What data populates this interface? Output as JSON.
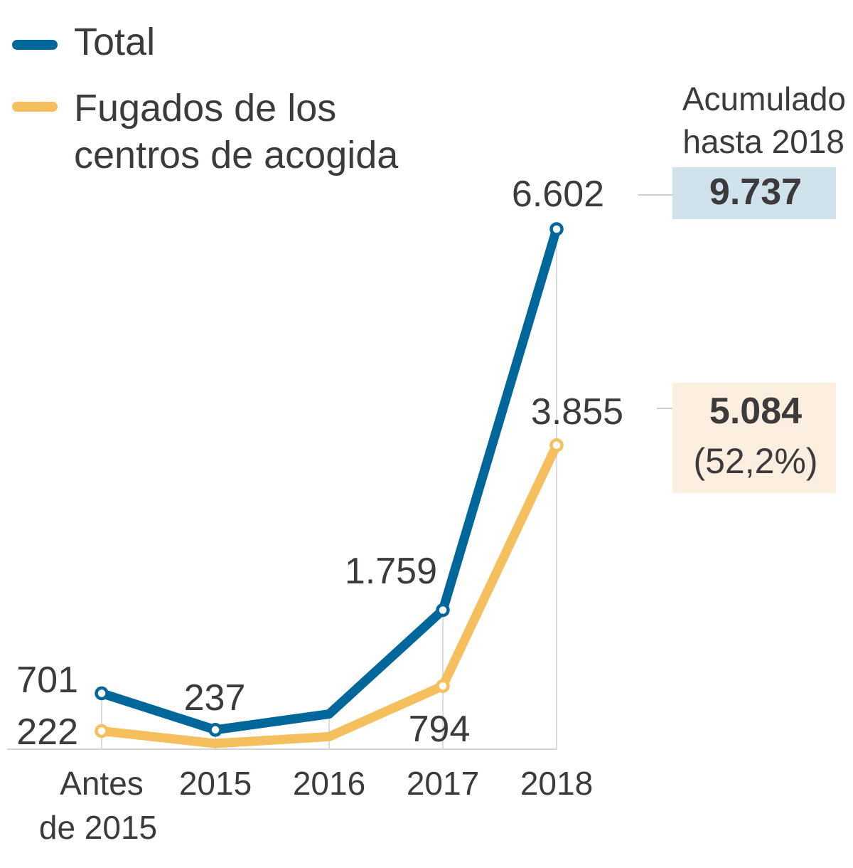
{
  "chart_data": {
    "type": "line",
    "title": "",
    "xlabel": "",
    "ylabel": "",
    "categories": [
      [
        "Antes",
        "de 2015"
      ],
      [
        "2015"
      ],
      [
        "2016"
      ],
      [
        "2017"
      ],
      [
        "2018"
      ]
    ],
    "ylim": [
      0,
      6602
    ],
    "grid": "vertical",
    "legend_position": "top-left",
    "series": [
      {
        "name": "Total",
        "color": "#00679b",
        "values": [
          701,
          237,
          438,
          1759,
          6602
        ],
        "labels": [
          "701",
          "237",
          "",
          "1.759",
          "6.602"
        ],
        "markers": [
          true,
          true,
          false,
          true,
          true
        ]
      },
      {
        "name": "Fugados de los centros de acogida",
        "legend_lines": [
          "Fugados de los",
          "centros de acogida"
        ],
        "color": "#f6bf5d",
        "values": [
          222,
          63,
          150,
          794,
          3855
        ],
        "labels": [
          "222",
          "",
          "",
          "794",
          "3.855"
        ],
        "markers": [
          true,
          false,
          false,
          true,
          true
        ]
      }
    ],
    "annotations": {
      "accumulated_title": [
        "Acumulado",
        "hasta 2018"
      ],
      "total_accumulated": {
        "value": "9.737",
        "bg": "#d0e3ec"
      },
      "fugados_accumulated": {
        "value": "5.084",
        "percent": "(52,2%)",
        "bg": "#fdefe0"
      }
    }
  }
}
